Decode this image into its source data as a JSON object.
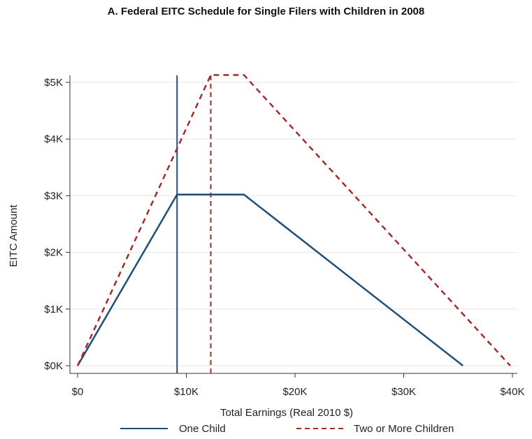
{
  "chart_data": {
    "type": "line",
    "title": "A. Federal EITC Schedule for Single Filers with Children in 2008",
    "xlabel": "Total Earnings (Real 2010 $)",
    "ylabel": "EITC Amount",
    "xlim": [
      0,
      40000
    ],
    "ylim": [
      0,
      5000
    ],
    "x_ticks": [
      0,
      10000,
      20000,
      30000,
      40000
    ],
    "x_tick_labels": [
      "$0",
      "$10K",
      "$20K",
      "$30K",
      "$40K"
    ],
    "y_ticks": [
      0,
      1000,
      2000,
      3000,
      4000,
      5000
    ],
    "y_tick_labels": [
      "$0K",
      "$1K",
      "$2K",
      "$3K",
      "$4K",
      "$5K"
    ],
    "grid": "horizontal",
    "legend_position": "bottom",
    "series": [
      {
        "name": "One Child",
        "style": "solid",
        "color": "#1f4e79",
        "x": [
          0,
          9150,
          15300,
          35450
        ],
        "y": [
          0,
          3020,
          3020,
          0
        ],
        "reference_line_x": 9150
      },
      {
        "name": "Two or More Children",
        "style": "dashed",
        "color": "#a52a2a",
        "x": [
          0,
          12250,
          15300,
          39800
        ],
        "y": [
          0,
          5130,
          5130,
          0
        ],
        "reference_line_x": 12250
      }
    ]
  }
}
